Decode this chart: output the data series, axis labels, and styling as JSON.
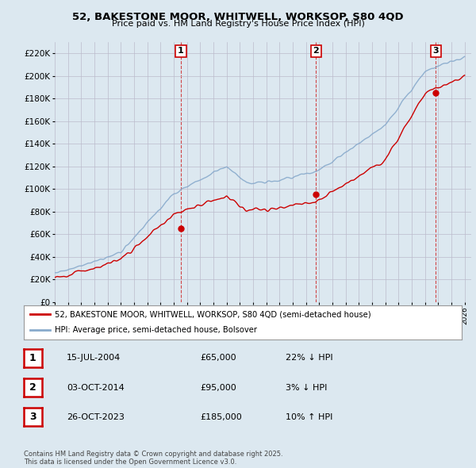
{
  "title": "52, BAKESTONE MOOR, WHITWELL, WORKSOP, S80 4QD",
  "subtitle": "Price paid vs. HM Land Registry's House Price Index (HPI)",
  "xlim_start": 1995.0,
  "xlim_end": 2026.5,
  "ylim": [
    0,
    230000
  ],
  "yticks": [
    0,
    20000,
    40000,
    60000,
    80000,
    100000,
    120000,
    140000,
    160000,
    180000,
    200000,
    220000
  ],
  "ytick_labels": [
    "£0",
    "£20K",
    "£40K",
    "£60K",
    "£80K",
    "£100K",
    "£120K",
    "£140K",
    "£160K",
    "£180K",
    "£200K",
    "£220K"
  ],
  "sale1_x": 2004.54,
  "sale1_y": 65000,
  "sale1_label": "1",
  "sale2_x": 2014.75,
  "sale2_y": 95000,
  "sale2_label": "2",
  "sale3_x": 2023.82,
  "sale3_y": 185000,
  "sale3_label": "3",
  "legend_label_red": "52, BAKESTONE MOOR, WHITWELL, WORKSOP, S80 4QD (semi-detached house)",
  "legend_label_blue": "HPI: Average price, semi-detached house, Bolsover",
  "table_data": [
    {
      "num": "1",
      "date": "15-JUL-2004",
      "price": "£65,000",
      "hpi": "22% ↓ HPI"
    },
    {
      "num": "2",
      "date": "03-OCT-2014",
      "price": "£95,000",
      "hpi": "3% ↓ HPI"
    },
    {
      "num": "3",
      "date": "26-OCT-2023",
      "price": "£185,000",
      "hpi": "10% ↑ HPI"
    }
  ],
  "footer": "Contains HM Land Registry data © Crown copyright and database right 2025.\nThis data is licensed under the Open Government Licence v3.0.",
  "bg_color": "#dce8f0",
  "plot_bg": "#dce8f0",
  "red_color": "#cc0000",
  "blue_color": "#88aacc",
  "dashed_color": "#cc0000",
  "grid_color": "#bbbbcc"
}
